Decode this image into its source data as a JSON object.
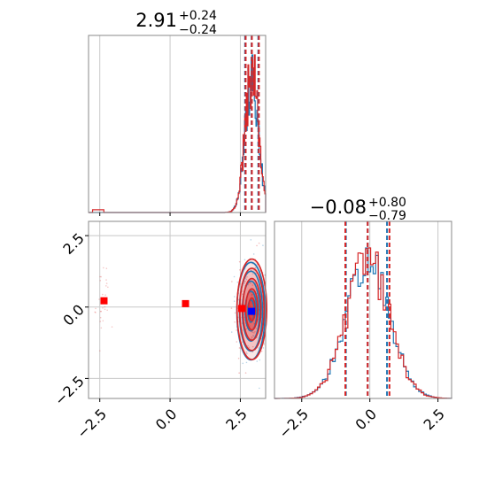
{
  "colors": {
    "series_a": "#1f77b4",
    "series_b": "#d62728",
    "marker_red": "#ff0000",
    "marker_blue": "#0000ff",
    "grid": "#c8c8c8",
    "frame": "#888888"
  },
  "chart_data": {
    "type": "corner",
    "grid": true,
    "series": [
      {
        "color": "series_a"
      },
      {
        "color": "series_b"
      }
    ],
    "panels": {
      "param1_marginal": {
        "title_value": "2.91",
        "title_plus": "+0.24",
        "title_minus": "−0.24",
        "xlim": [
          -2.9,
          3.4
        ],
        "quantiles": {
          "series_a": [
            2.67,
            2.9,
            3.14
          ],
          "series_b": [
            2.69,
            2.91,
            3.16
          ]
        }
      },
      "param2_marginal": {
        "title_value": "−0.08",
        "title_plus": "+0.80",
        "title_minus": "−0.79",
        "xlim": [
          -3.5,
          3.0
        ],
        "quantiles": {
          "series_a": [
            -0.88,
            -0.08,
            0.63
          ],
          "series_b": [
            -0.9,
            -0.08,
            0.72
          ]
        }
      },
      "joint": {
        "xlim": [
          -2.9,
          3.4
        ],
        "ylim": [
          -3.2,
          3.0
        ],
        "center": [
          2.91,
          -0.08
        ],
        "spread": [
          0.24,
          0.8
        ],
        "red_markers": [
          [
            -2.35,
            0.22
          ],
          [
            0.55,
            0.12
          ],
          [
            2.55,
            -0.05
          ]
        ],
        "blue_markers": [
          [
            2.9,
            -0.15
          ]
        ]
      }
    },
    "x_ticks_param1": [
      "−2.5",
      "0.0",
      "2.5"
    ],
    "y_ticks_param2": [
      "2.5",
      "0.0",
      "−2.5"
    ],
    "x_ticks_param2": [
      "−2.5",
      "0.0",
      "2.5"
    ]
  }
}
